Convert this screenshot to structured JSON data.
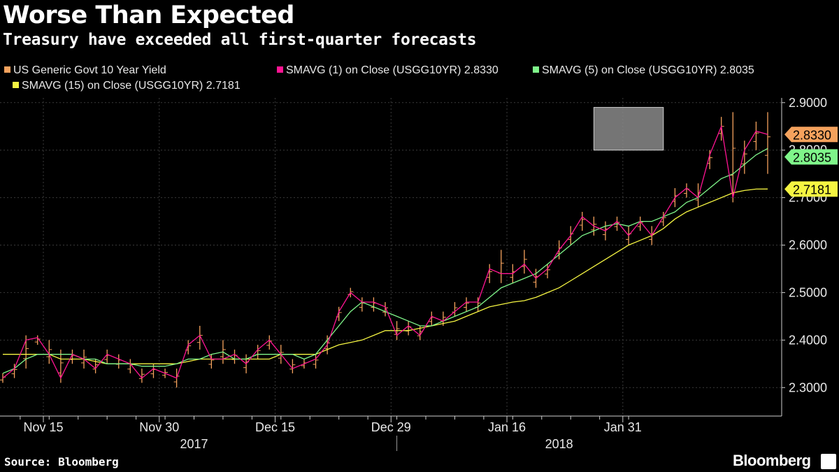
{
  "header": {
    "title": "Worse Than Expected",
    "subtitle": "Treasury have exceeded all first-quarter forecasts"
  },
  "legend": [
    {
      "label": "US Generic Govt 10 Year Yield",
      "color": "#f5a25d"
    },
    {
      "label": "SMAVG (1) on Close (USGG10YR) 2.8330",
      "color": "#ff1493"
    },
    {
      "label": "SMAVG (5) on Close (USGG10YR) 2.8035",
      "color": "#7ff58a"
    },
    {
      "label": "SMAVG (15) on Close (USGG10YR) 2.7181",
      "color": "#f5f542"
    }
  ],
  "footer": {
    "source": "Source: Bloomberg",
    "brand": "Bloomberg"
  },
  "colors": {
    "background": "#000000",
    "price": "#f5a25d",
    "sma1": "#ff1493",
    "sma5": "#7ff58a",
    "sma15": "#f5f542",
    "grid": "#3a3a3a"
  },
  "chart_data": {
    "type": "line",
    "title": "Worse Than Expected",
    "subtitle": "Treasury have exceeded all first-quarter forecasts",
    "x_tick_labels": [
      "Nov 15",
      "Nov 30",
      "Dec 15",
      "Dec 29",
      "Jan 16",
      "Jan 31"
    ],
    "x_tick_index": [
      3.5,
      13.5,
      23.5,
      33.5,
      43.5,
      53.5
    ],
    "year_labels": [
      {
        "label": "2017",
        "at_index": 16.5
      },
      {
        "label": "2018",
        "at_index": 48
      }
    ],
    "ylim": [
      2.24,
      2.91
    ],
    "y_ticks": [
      2.3,
      2.4,
      2.5,
      2.6,
      2.7,
      2.8,
      2.9
    ],
    "y_tick_labels": [
      "2.3000",
      "2.4000",
      "2.5000",
      "2.6000",
      "2.7000",
      "2.8000",
      "2.9000"
    ],
    "value_tags": [
      {
        "label": "2.8330",
        "value": 2.833,
        "series": "SMAVG (1)"
      },
      {
        "label": "2.8035",
        "value": 2.8035,
        "series": "SMAVG (5)"
      },
      {
        "label": "2.7181",
        "value": 2.7181,
        "series": "SMAVG (15)"
      }
    ],
    "highlight_box": {
      "x_from_index": 51,
      "x_to_index": 57,
      "y_from": 2.8,
      "y_to": 2.89
    },
    "series": [
      {
        "name": "SMAVG (1) on Close (USGG10YR)",
        "values": [
          2.32,
          2.34,
          2.4,
          2.405,
          2.37,
          2.32,
          2.37,
          2.36,
          2.34,
          2.37,
          2.36,
          2.35,
          2.32,
          2.34,
          2.33,
          2.32,
          2.39,
          2.41,
          2.36,
          2.36,
          2.37,
          2.35,
          2.38,
          2.4,
          2.37,
          2.34,
          2.35,
          2.36,
          2.39,
          2.46,
          2.5,
          2.48,
          2.48,
          2.47,
          2.41,
          2.43,
          2.41,
          2.45,
          2.44,
          2.46,
          2.48,
          2.48,
          2.55,
          2.54,
          2.54,
          2.56,
          2.53,
          2.55,
          2.59,
          2.62,
          2.66,
          2.64,
          2.63,
          2.65,
          2.62,
          2.65,
          2.62,
          2.66,
          2.7,
          2.72,
          2.7,
          2.79,
          2.85,
          2.7,
          2.8,
          2.84,
          2.833
        ]
      },
      {
        "name": "SMAVG (5) on Close (USGG10YR)",
        "values": [
          2.33,
          2.34,
          2.36,
          2.37,
          2.37,
          2.37,
          2.37,
          2.36,
          2.36,
          2.35,
          2.35,
          2.35,
          2.345,
          2.345,
          2.345,
          2.35,
          2.36,
          2.36,
          2.37,
          2.375,
          2.36,
          2.36,
          2.37,
          2.37,
          2.37,
          2.37,
          2.36,
          2.37,
          2.4,
          2.43,
          2.46,
          2.48,
          2.47,
          2.46,
          2.45,
          2.44,
          2.43,
          2.43,
          2.44,
          2.45,
          2.46,
          2.47,
          2.49,
          2.51,
          2.52,
          2.53,
          2.54,
          2.56,
          2.58,
          2.6,
          2.62,
          2.63,
          2.64,
          2.645,
          2.64,
          2.65,
          2.65,
          2.66,
          2.67,
          2.69,
          2.7,
          2.72,
          2.74,
          2.75,
          2.77,
          2.79,
          2.8035
        ]
      },
      {
        "name": "SMAVG (15) on Close (USGG10YR)",
        "values": [
          2.37,
          2.37,
          2.37,
          2.37,
          2.37,
          2.36,
          2.36,
          2.36,
          2.355,
          2.35,
          2.35,
          2.35,
          2.35,
          2.35,
          2.35,
          2.35,
          2.355,
          2.36,
          2.36,
          2.36,
          2.36,
          2.36,
          2.36,
          2.36,
          2.37,
          2.37,
          2.37,
          2.37,
          2.38,
          2.39,
          2.395,
          2.4,
          2.41,
          2.42,
          2.42,
          2.42,
          2.425,
          2.43,
          2.435,
          2.44,
          2.45,
          2.46,
          2.47,
          2.475,
          2.48,
          2.483,
          2.49,
          2.5,
          2.51,
          2.525,
          2.54,
          2.555,
          2.57,
          2.585,
          2.6,
          2.61,
          2.62,
          2.635,
          2.655,
          2.67,
          2.68,
          2.69,
          2.7,
          2.71,
          2.715,
          2.718,
          2.7181
        ]
      },
      {
        "name": "US Generic Govt 10 Year Yield",
        "bars": [
          [
            2.31,
            2.33
          ],
          [
            2.32,
            2.35
          ],
          [
            2.34,
            2.41
          ],
          [
            2.39,
            2.41
          ],
          [
            2.35,
            2.4
          ],
          [
            2.31,
            2.38
          ],
          [
            2.35,
            2.38
          ],
          [
            2.34,
            2.38
          ],
          [
            2.33,
            2.36
          ],
          [
            2.35,
            2.38
          ],
          [
            2.34,
            2.37
          ],
          [
            2.33,
            2.36
          ],
          [
            2.31,
            2.34
          ],
          [
            2.32,
            2.35
          ],
          [
            2.32,
            2.34
          ],
          [
            2.3,
            2.34
          ],
          [
            2.37,
            2.4
          ],
          [
            2.38,
            2.43
          ],
          [
            2.34,
            2.37
          ],
          [
            2.35,
            2.4
          ],
          [
            2.35,
            2.38
          ],
          [
            2.33,
            2.37
          ],
          [
            2.36,
            2.39
          ],
          [
            2.38,
            2.41
          ],
          [
            2.35,
            2.39
          ],
          [
            2.33,
            2.36
          ],
          [
            2.34,
            2.36
          ],
          [
            2.34,
            2.37
          ],
          [
            2.37,
            2.41
          ],
          [
            2.44,
            2.47
          ],
          [
            2.49,
            2.51
          ],
          [
            2.46,
            2.49
          ],
          [
            2.46,
            2.49
          ],
          [
            2.45,
            2.48
          ],
          [
            2.4,
            2.44
          ],
          [
            2.41,
            2.44
          ],
          [
            2.4,
            2.43
          ],
          [
            2.43,
            2.46
          ],
          [
            2.43,
            2.46
          ],
          [
            2.45,
            2.48
          ],
          [
            2.46,
            2.49
          ],
          [
            2.46,
            2.49
          ],
          [
            2.52,
            2.56
          ],
          [
            2.52,
            2.59
          ],
          [
            2.52,
            2.56
          ],
          [
            2.54,
            2.59
          ],
          [
            2.51,
            2.55
          ],
          [
            2.53,
            2.56
          ],
          [
            2.57,
            2.61
          ],
          [
            2.6,
            2.64
          ],
          [
            2.63,
            2.67
          ],
          [
            2.62,
            2.66
          ],
          [
            2.61,
            2.65
          ],
          [
            2.63,
            2.66
          ],
          [
            2.6,
            2.64
          ],
          [
            2.63,
            2.66
          ],
          [
            2.6,
            2.64
          ],
          [
            2.64,
            2.67
          ],
          [
            2.68,
            2.72
          ],
          [
            2.7,
            2.73
          ],
          [
            2.68,
            2.73
          ],
          [
            2.76,
            2.8
          ],
          [
            2.82,
            2.87
          ],
          [
            2.69,
            2.88
          ],
          [
            2.75,
            2.82
          ],
          [
            2.8,
            2.86
          ],
          [
            2.75,
            2.88
          ]
        ]
      }
    ]
  }
}
